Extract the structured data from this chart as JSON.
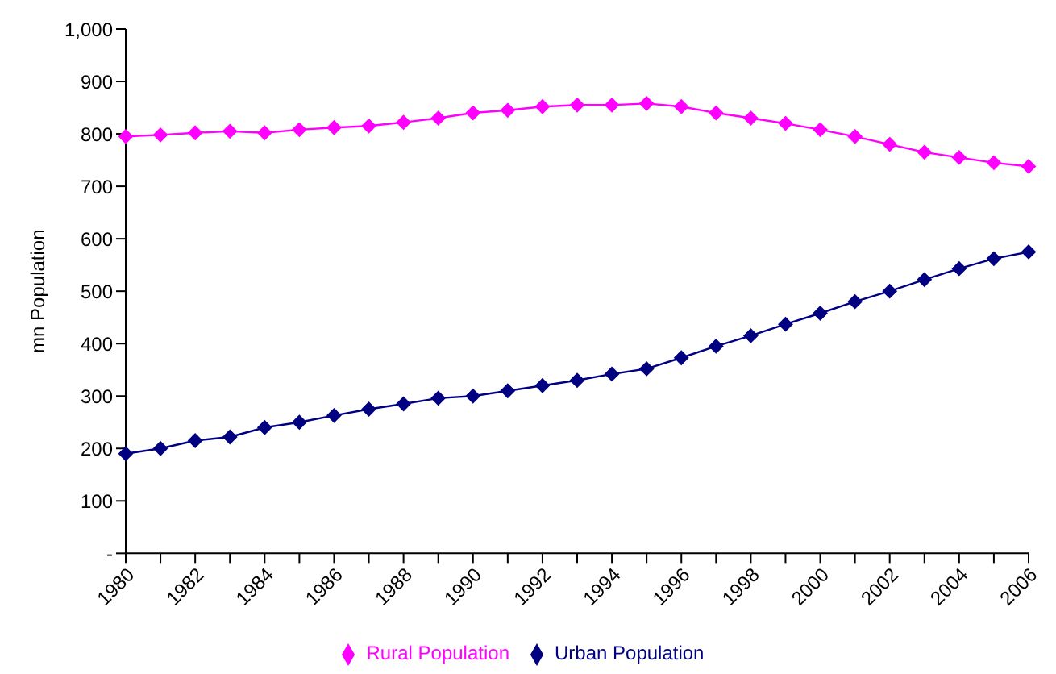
{
  "chart_data": {
    "type": "line",
    "ylabel": "mn Population",
    "categories": [
      "1980",
      null,
      "1982",
      null,
      "1984",
      null,
      "1986",
      null,
      "1988",
      null,
      "1990",
      null,
      "1992",
      null,
      "1994",
      null,
      "1996",
      null,
      "1998",
      null,
      "2000",
      null,
      "2002",
      null,
      "2004",
      null,
      "2006"
    ],
    "series": [
      {
        "name": "Urban Population",
        "color": "#000080",
        "values": [
          190,
          200,
          215,
          222,
          240,
          250,
          263,
          275,
          285,
          296,
          300,
          310,
          320,
          330,
          342,
          352,
          373,
          395,
          415,
          437,
          458,
          480,
          500,
          522,
          543,
          562,
          575
        ]
      },
      {
        "name": "Rural Population",
        "color": "#ff00ff",
        "values": [
          795,
          798,
          802,
          805,
          802,
          808,
          812,
          815,
          822,
          830,
          840,
          845,
          852,
          855,
          855,
          858,
          852,
          840,
          830,
          820,
          808,
          795,
          780,
          765,
          755,
          745,
          738
        ]
      }
    ],
    "ylim": [
      0,
      1000
    ],
    "yticks": [
      {
        "value": 0,
        "label": "-"
      },
      100,
      200,
      300,
      400,
      500,
      600,
      700,
      800,
      900,
      {
        "value": 1000,
        "label": "1,000"
      }
    ],
    "grid": false,
    "legend": "bottom",
    "marker": "diamond",
    "line_style": "solid"
  }
}
